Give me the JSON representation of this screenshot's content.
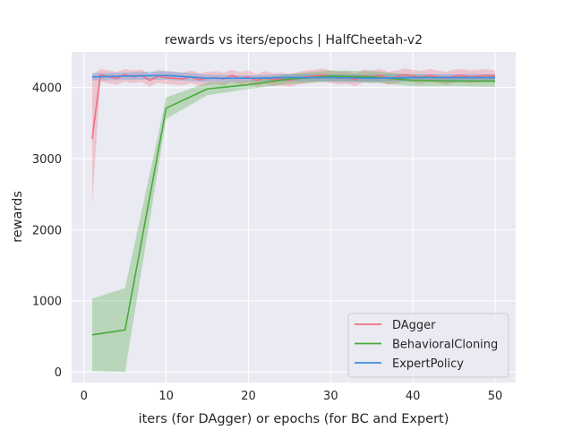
{
  "chart_data": {
    "type": "line",
    "title": "rewards vs iters/epochs | HalfCheetah-v2",
    "xlabel": "iters (for DAgger) or epochs (for BC and Expert)",
    "ylabel": "rewards",
    "xlim": [
      -1.5,
      52.5
    ],
    "ylim": [
      -150,
      4500
    ],
    "xticks": [
      0,
      10,
      20,
      30,
      40,
      50
    ],
    "yticks": [
      0,
      1000,
      2000,
      3000,
      4000
    ],
    "grid": true,
    "legend_position": "lower right",
    "series": [
      {
        "name": "DAgger",
        "color": "#f0707e",
        "x": [
          1,
          2,
          3,
          4,
          5,
          6,
          7,
          8,
          9,
          10,
          11,
          12,
          13,
          14,
          15,
          16,
          17,
          18,
          19,
          20,
          21,
          22,
          23,
          24,
          25,
          26,
          27,
          28,
          29,
          30,
          31,
          32,
          33,
          34,
          35,
          36,
          37,
          38,
          39,
          40,
          41,
          42,
          43,
          44,
          45,
          46,
          47,
          48,
          49,
          50
        ],
        "y": [
          3280,
          4180,
          4150,
          4130,
          4180,
          4150,
          4170,
          4100,
          4160,
          4140,
          4130,
          4120,
          4150,
          4110,
          4130,
          4140,
          4120,
          4170,
          4130,
          4150,
          4100,
          4140,
          4110,
          4120,
          4100,
          4130,
          4150,
          4160,
          4180,
          4150,
          4130,
          4140,
          4110,
          4160,
          4150,
          4170,
          4130,
          4150,
          4180,
          4160,
          4140,
          4170,
          4150,
          4130,
          4160,
          4170,
          4150,
          4160,
          4170,
          4160
        ],
        "ci_low": [
          2380,
          4080,
          4060,
          4040,
          4080,
          4060,
          4080,
          4010,
          4070,
          4050,
          4040,
          4030,
          4060,
          4020,
          4040,
          4050,
          4030,
          4080,
          4040,
          4060,
          4010,
          4050,
          4020,
          4030,
          4010,
          4040,
          4060,
          4070,
          4090,
          4060,
          4040,
          4050,
          4020,
          4070,
          4060,
          4080,
          4040,
          4060,
          4090,
          4070,
          4050,
          4080,
          4060,
          4040,
          4070,
          4080,
          4060,
          4070,
          4080,
          4080
        ],
        "ci_high": [
          4180,
          4260,
          4240,
          4220,
          4260,
          4240,
          4250,
          4190,
          4250,
          4230,
          4220,
          4210,
          4240,
          4200,
          4220,
          4230,
          4210,
          4250,
          4220,
          4240,
          4190,
          4230,
          4200,
          4210,
          4190,
          4220,
          4240,
          4250,
          4270,
          4240,
          4220,
          4230,
          4200,
          4250,
          4240,
          4260,
          4220,
          4240,
          4270,
          4250,
          4230,
          4260,
          4240,
          4220,
          4250,
          4260,
          4240,
          4250,
          4260,
          4240
        ]
      },
      {
        "name": "BehavioralCloning",
        "color": "#4aaa3a",
        "x": [
          1,
          5,
          10,
          15,
          20,
          25,
          30,
          35,
          40,
          45,
          50
        ],
        "y": [
          520,
          590,
          3710,
          3980,
          4040,
          4120,
          4160,
          4150,
          4100,
          4090,
          4090
        ],
        "ci_low": [
          10,
          0,
          3560,
          3890,
          3980,
          4050,
          4080,
          4070,
          4020,
          4020,
          4010
        ],
        "ci_high": [
          1030,
          1180,
          3860,
          4070,
          4100,
          4190,
          4240,
          4230,
          4180,
          4160,
          4170
        ]
      },
      {
        "name": "ExpertPolicy",
        "color": "#3f8ee0",
        "x": [
          1,
          5,
          10,
          15,
          20,
          25,
          30,
          35,
          40,
          45,
          50
        ],
        "y": [
          4150,
          4160,
          4170,
          4130,
          4130,
          4140,
          4140,
          4130,
          4140,
          4140,
          4140
        ],
        "ci_low": [
          4100,
          4110,
          4110,
          4080,
          4090,
          4090,
          4090,
          4080,
          4090,
          4090,
          4090
        ],
        "ci_high": [
          4200,
          4210,
          4230,
          4180,
          4170,
          4190,
          4190,
          4180,
          4190,
          4190,
          4190
        ]
      }
    ]
  }
}
